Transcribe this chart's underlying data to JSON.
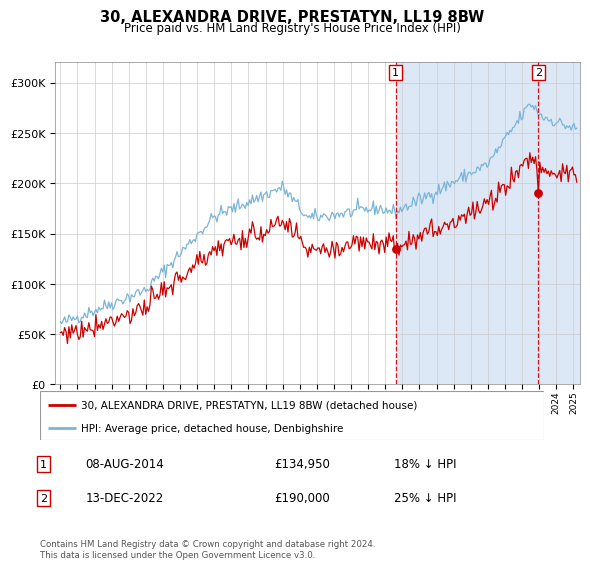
{
  "title": "30, ALEXANDRA DRIVE, PRESTATYN, LL19 8BW",
  "subtitle": "Price paid vs. HM Land Registry's House Price Index (HPI)",
  "hpi_label": "HPI: Average price, detached house, Denbighshire",
  "property_label": "30, ALEXANDRA DRIVE, PRESTATYN, LL19 8BW (detached house)",
  "transaction1_date": "08-AUG-2014",
  "transaction1_price": "£134,950",
  "transaction1_hpi": "18% ↓ HPI",
  "transaction2_date": "13-DEC-2022",
  "transaction2_price": "£190,000",
  "transaction2_hpi": "25% ↓ HPI",
  "footer": "Contains HM Land Registry data © Crown copyright and database right 2024.\nThis data is licensed under the Open Government Licence v3.0.",
  "ylim": [
    0,
    320000
  ],
  "hpi_color": "#7ab4d8",
  "property_color": "#cc0000",
  "background_color": "#ffffff",
  "chart_bg": "#ffffff",
  "grid_color": "#cccccc",
  "span_color": "#dce8f5",
  "transaction1_x": 2014.6,
  "transaction2_x": 2022.95,
  "transaction1_y": 134950,
  "transaction2_y": 190000,
  "xmin": 1994.7,
  "xmax": 2025.4
}
